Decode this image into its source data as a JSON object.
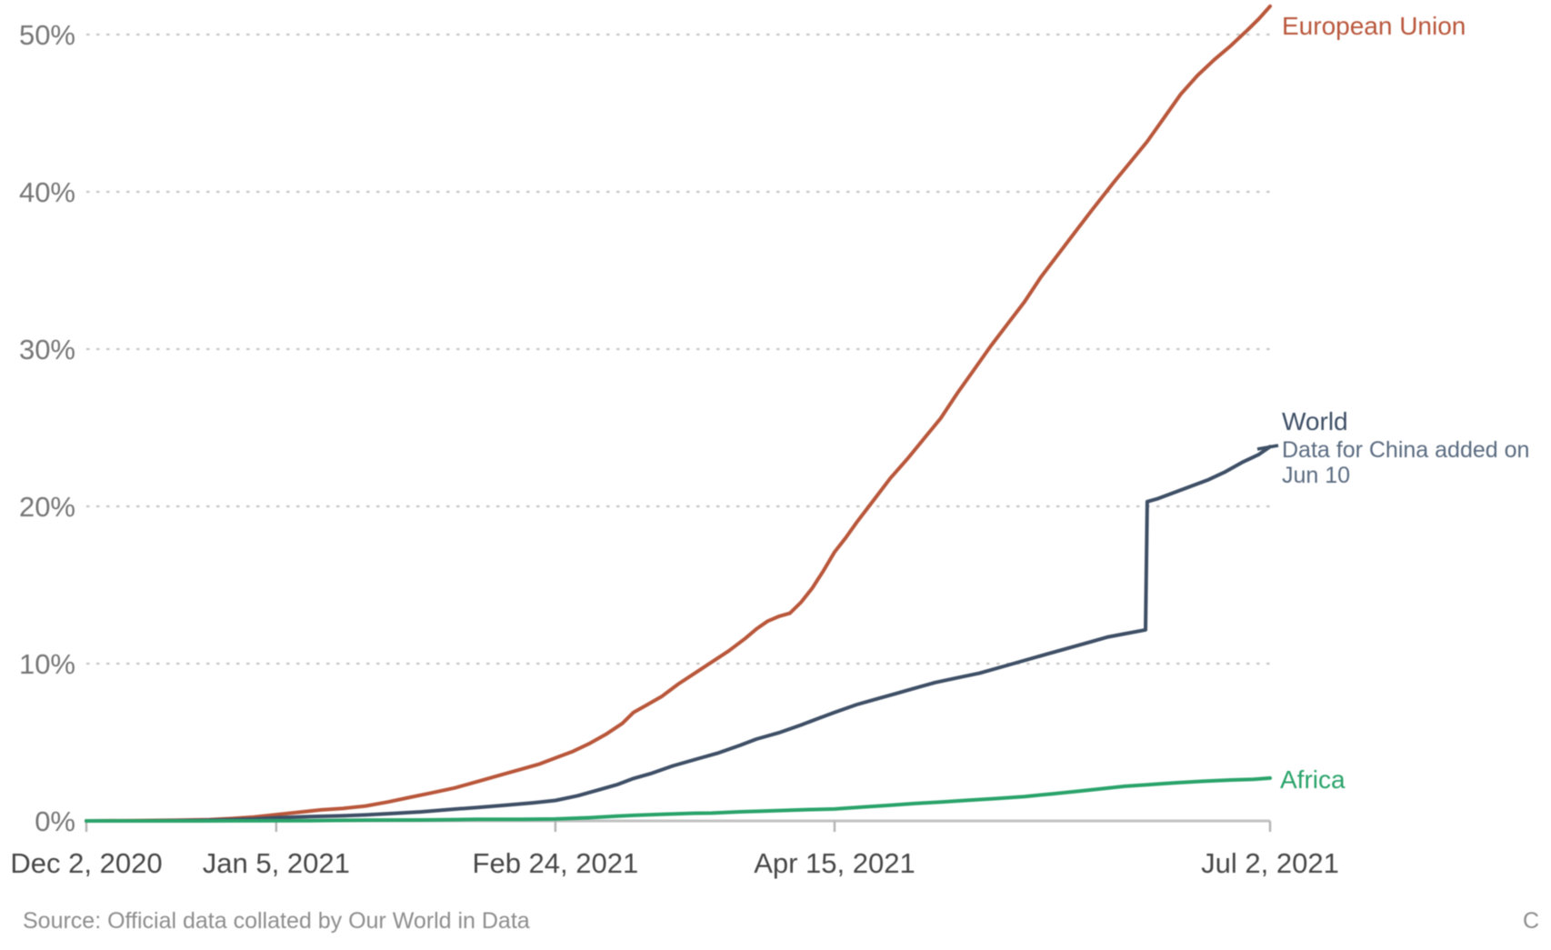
{
  "chart_data": {
    "type": "line",
    "title": "",
    "x_axis": {
      "tick_labels": [
        "Dec 2, 2020",
        "Jan 5, 2021",
        "Feb 24, 2021",
        "Apr 15, 2021",
        "Jul 2, 2021"
      ],
      "tick_days": [
        0,
        34,
        84,
        134,
        212
      ],
      "range_days": [
        0,
        212
      ],
      "grid": false
    },
    "y_axis": {
      "tick_labels": [
        "0%",
        "10%",
        "20%",
        "30%",
        "40%",
        "50%"
      ],
      "tick_values": [
        0,
        10,
        20,
        30,
        40,
        50
      ],
      "unit": "%",
      "ylim": [
        0,
        52.5
      ],
      "grid": "dotted horizontal"
    },
    "legend_position": "end-of-line labels, right side",
    "series": [
      {
        "name": "European Union",
        "color": "#b9573b",
        "end_value_pct": 51.8,
        "points": [
          [
            0,
            0
          ],
          [
            8,
            0.02
          ],
          [
            16,
            0.04
          ],
          [
            22,
            0.08
          ],
          [
            26,
            0.15
          ],
          [
            30,
            0.25
          ],
          [
            34,
            0.4
          ],
          [
            38,
            0.55
          ],
          [
            42,
            0.7
          ],
          [
            46,
            0.8
          ],
          [
            50,
            0.95
          ],
          [
            54,
            1.2
          ],
          [
            58,
            1.5
          ],
          [
            62,
            1.8
          ],
          [
            66,
            2.1
          ],
          [
            70,
            2.5
          ],
          [
            74,
            2.9
          ],
          [
            78,
            3.3
          ],
          [
            81,
            3.6
          ],
          [
            84,
            4.0
          ],
          [
            87,
            4.4
          ],
          [
            90,
            4.9
          ],
          [
            93,
            5.5
          ],
          [
            96,
            6.2
          ],
          [
            98,
            6.9
          ],
          [
            100,
            7.3
          ],
          [
            103,
            7.9
          ],
          [
            106,
            8.7
          ],
          [
            109,
            9.4
          ],
          [
            112,
            10.1
          ],
          [
            115,
            10.8
          ],
          [
            118,
            11.6
          ],
          [
            120,
            12.2
          ],
          [
            122,
            12.7
          ],
          [
            124,
            13.0
          ],
          [
            126,
            13.2
          ],
          [
            128,
            13.9
          ],
          [
            130,
            14.8
          ],
          [
            132,
            15.9
          ],
          [
            134,
            17.1
          ],
          [
            136,
            18.0
          ],
          [
            138,
            19.0
          ],
          [
            141,
            20.4
          ],
          [
            144,
            21.8
          ],
          [
            147,
            23.0
          ],
          [
            150,
            24.3
          ],
          [
            153,
            25.6
          ],
          [
            156,
            27.2
          ],
          [
            159,
            28.7
          ],
          [
            162,
            30.2
          ],
          [
            165,
            31.6
          ],
          [
            168,
            33.0
          ],
          [
            171,
            34.6
          ],
          [
            174,
            36.0
          ],
          [
            177,
            37.4
          ],
          [
            180,
            38.8
          ],
          [
            184,
            40.6
          ],
          [
            187,
            41.9
          ],
          [
            190,
            43.2
          ],
          [
            193,
            44.7
          ],
          [
            196,
            46.2
          ],
          [
            199,
            47.4
          ],
          [
            202,
            48.4
          ],
          [
            205,
            49.3
          ],
          [
            208,
            50.3
          ],
          [
            210,
            51.0
          ],
          [
            212,
            51.8
          ]
        ]
      },
      {
        "name": "World",
        "color": "#3e4f66",
        "annotation": "Data for China added on Jun 10",
        "jump": {
          "day": 190,
          "from_pct": 12.1,
          "to_pct": 20.3
        },
        "end_value_pct": 23.8,
        "points": [
          [
            0,
            0
          ],
          [
            10,
            0
          ],
          [
            20,
            0.03
          ],
          [
            26,
            0.08
          ],
          [
            30,
            0.12
          ],
          [
            34,
            0.2
          ],
          [
            40,
            0.28
          ],
          [
            45,
            0.32
          ],
          [
            50,
            0.38
          ],
          [
            55,
            0.48
          ],
          [
            60,
            0.58
          ],
          [
            66,
            0.75
          ],
          [
            70,
            0.85
          ],
          [
            75,
            1.0
          ],
          [
            80,
            1.15
          ],
          [
            84,
            1.3
          ],
          [
            88,
            1.6
          ],
          [
            92,
            2.0
          ],
          [
            95,
            2.3
          ],
          [
            98,
            2.7
          ],
          [
            101,
            3.0
          ],
          [
            105,
            3.5
          ],
          [
            109,
            3.9
          ],
          [
            113,
            4.3
          ],
          [
            117,
            4.8
          ],
          [
            120,
            5.2
          ],
          [
            124,
            5.6
          ],
          [
            128,
            6.1
          ],
          [
            131,
            6.5
          ],
          [
            134,
            6.9
          ],
          [
            138,
            7.4
          ],
          [
            142,
            7.8
          ],
          [
            145,
            8.1
          ],
          [
            148,
            8.4
          ],
          [
            152,
            8.8
          ],
          [
            156,
            9.1
          ],
          [
            160,
            9.4
          ],
          [
            164,
            9.8
          ],
          [
            168,
            10.2
          ],
          [
            172,
            10.6
          ],
          [
            176,
            11.0
          ],
          [
            180,
            11.4
          ],
          [
            183,
            11.7
          ],
          [
            186,
            11.9
          ],
          [
            189,
            12.1
          ],
          [
            189.7,
            12.15
          ],
          [
            190,
            20.3
          ],
          [
            192,
            20.5
          ],
          [
            195,
            20.9
          ],
          [
            198,
            21.3
          ],
          [
            201,
            21.7
          ],
          [
            204,
            22.2
          ],
          [
            207,
            22.8
          ],
          [
            210,
            23.3
          ],
          [
            212,
            23.8
          ]
        ]
      },
      {
        "name": "Africa",
        "color": "#2aa36a",
        "end_value_pct": 2.7,
        "points": [
          [
            0,
            0
          ],
          [
            20,
            0
          ],
          [
            40,
            0.02
          ],
          [
            50,
            0.05
          ],
          [
            60,
            0.06
          ],
          [
            70,
            0.1
          ],
          [
            78,
            0.1
          ],
          [
            84,
            0.12
          ],
          [
            90,
            0.2
          ],
          [
            95,
            0.3
          ],
          [
            98,
            0.35
          ],
          [
            103,
            0.42
          ],
          [
            108,
            0.48
          ],
          [
            112,
            0.5
          ],
          [
            117,
            0.58
          ],
          [
            121,
            0.62
          ],
          [
            126,
            0.68
          ],
          [
            130,
            0.72
          ],
          [
            134,
            0.76
          ],
          [
            139,
            0.88
          ],
          [
            144,
            1.0
          ],
          [
            148,
            1.1
          ],
          [
            153,
            1.2
          ],
          [
            158,
            1.32
          ],
          [
            163,
            1.42
          ],
          [
            168,
            1.55
          ],
          [
            173,
            1.72
          ],
          [
            178,
            1.9
          ],
          [
            182,
            2.05
          ],
          [
            186,
            2.2
          ],
          [
            190,
            2.3
          ],
          [
            195,
            2.42
          ],
          [
            200,
            2.52
          ],
          [
            205,
            2.6
          ],
          [
            209,
            2.65
          ],
          [
            212,
            2.72
          ]
        ]
      }
    ]
  },
  "labels": {
    "eu": "European Union",
    "world": "World",
    "world_annotation_line1": "Data for China added on",
    "world_annotation_line2": "Jun 10",
    "africa": "Africa"
  },
  "footer": {
    "source": "Source: Official data collated by Our World in Data",
    "license_fragment": "C"
  },
  "colors": {
    "european_union": "#b9573b",
    "world": "#3e4f66",
    "world_annotation": "#5a6b80",
    "africa": "#2aa36a",
    "gridline": "#c7c7c7",
    "axis_line": "#c2c2c2",
    "tick": "#b5b5b5",
    "y_tick_label": "#767676",
    "x_tick_label": "#474747",
    "source_text": "#8e8e8e"
  }
}
